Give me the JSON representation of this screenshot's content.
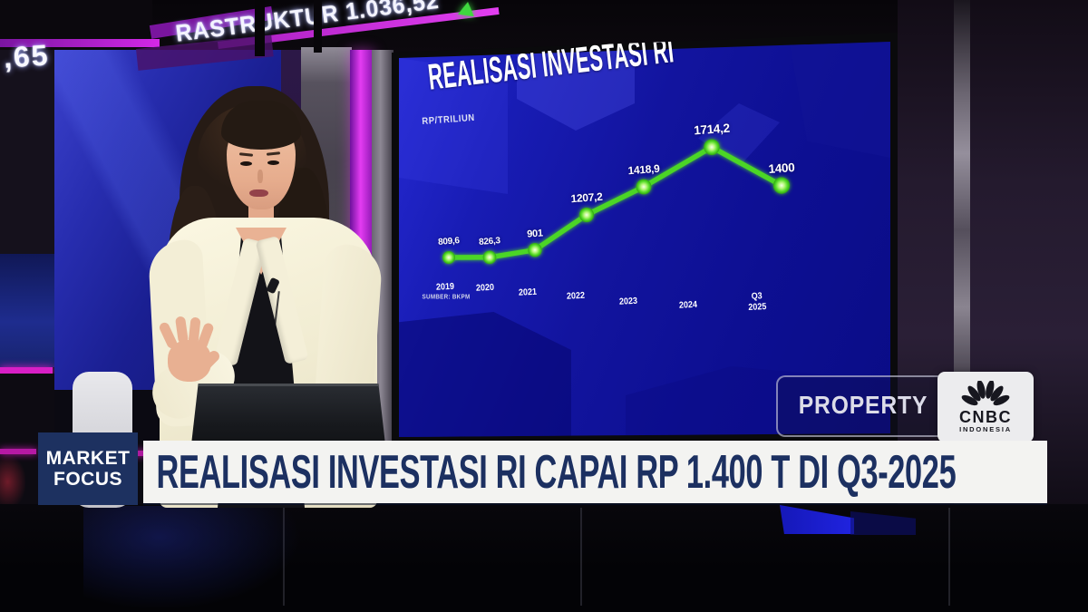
{
  "ticker": {
    "left_fragment": ",65",
    "headline_fragment": "RASTRUKTUR 1.036,52",
    "up_arrow": "▲"
  },
  "chart": {
    "title": "REALISASI INVESTASI RI",
    "unit": "RP/TRILIUN",
    "source": "SUMBER: BKPM"
  },
  "chart_data": {
    "type": "line",
    "title": "REALISASI INVESTASI RI",
    "unit": "RP/TRILIUN",
    "source": "SUMBER: BKPM",
    "categories": [
      "2019",
      "2020",
      "2021",
      "2022",
      "2023",
      "2024",
      "Q3 2025"
    ],
    "categories_display": [
      "2019",
      "2020",
      "2021",
      "2022",
      "2023",
      "2024",
      "Q3\n2025"
    ],
    "values": [
      809.6,
      826.3,
      901,
      1207.2,
      1418.9,
      1714.2,
      1400
    ],
    "value_labels": [
      "809,6",
      "826,3",
      "901",
      "1207,2",
      "1418,9",
      "1714,2",
      "1400"
    ],
    "series_color": "#4cd625",
    "ylim": [
      700,
      1800
    ],
    "grid": false,
    "legend": false
  },
  "watermark": {
    "label": "PROPERTY OF",
    "brand": "CNBC",
    "brand_sub": "INDONESIA"
  },
  "lower_third": {
    "tag_line1": "MARKET",
    "tag_line2": "FOCUS",
    "headline": "REALISASI INVESTASI RI CAPAI RP 1.400 T DI Q3-2025"
  },
  "colors": {
    "screen_blue": "#12149e",
    "line_green": "#4cd625",
    "accent_magenta": "#d428e8",
    "banner_navy": "#1d3160",
    "banner_text": "#1c3061",
    "banner_bg": "#f3f3f1"
  }
}
